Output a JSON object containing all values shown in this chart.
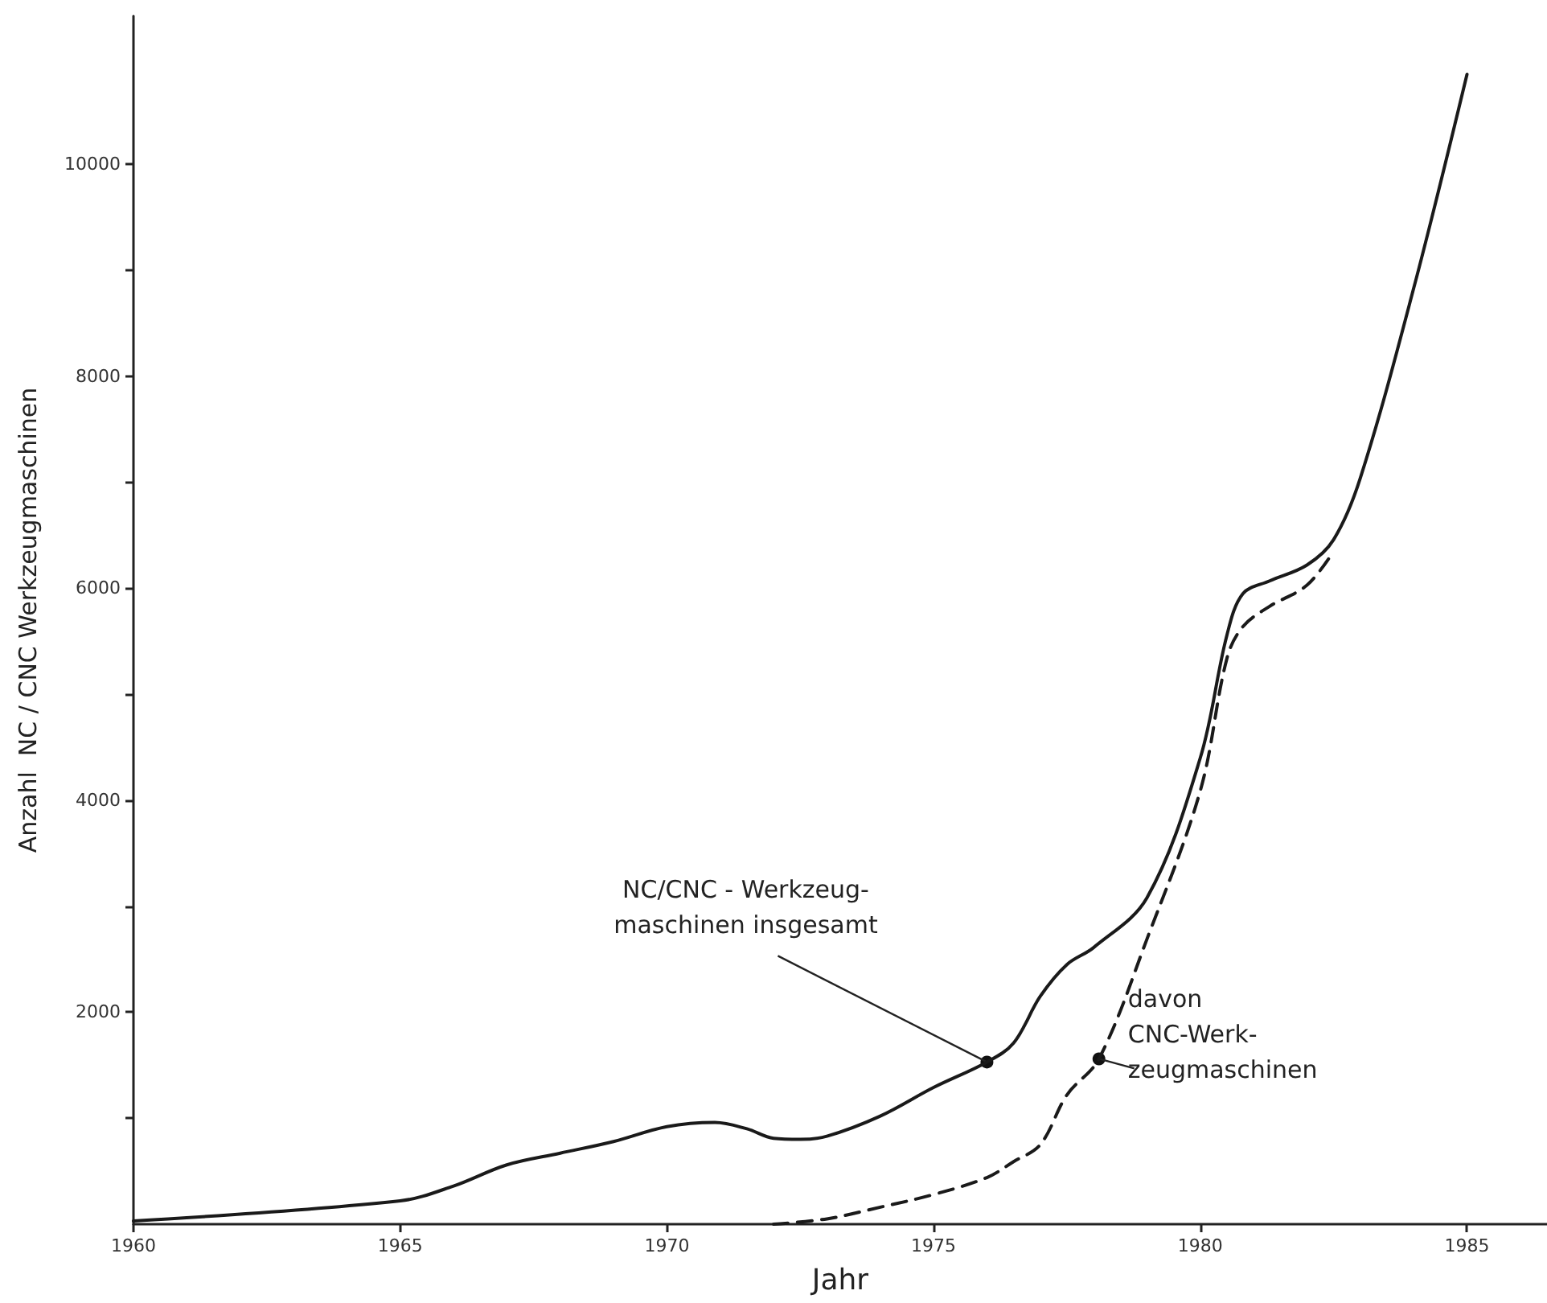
{
  "chart_data": {
    "type": "line",
    "xlabel": "Jahr",
    "ylabel": "Anzahl  NC / CNC Werkzeugmaschinen",
    "xlim": [
      1960,
      1986.5
    ],
    "ylim": [
      0,
      11400
    ],
    "xticks": [
      1960,
      1965,
      1970,
      1975,
      1980,
      1985
    ],
    "yticks": [
      {
        "value": 1000,
        "label": null
      },
      2000,
      {
        "value": 3000,
        "label": null
      },
      4000,
      {
        "value": 5000,
        "label": null
      },
      6000,
      {
        "value": 7000,
        "label": null
      },
      8000,
      {
        "value": 9000,
        "label": null
      },
      10000
    ],
    "marker": "none",
    "series": [
      {
        "color": "#1a1a1a",
        "line_style": "solid",
        "x": [
          1960,
          1965,
          1966,
          1967,
          1968,
          1969,
          1970,
          1970.9,
          1971.5,
          1972,
          1972.5,
          1973,
          1974,
          1975,
          1976,
          1976.5,
          1977,
          1977.5,
          1978,
          1979,
          1980,
          1980.5,
          1980.8,
          1981.3,
          1982,
          1982.5,
          1983,
          1984,
          1985
        ],
        "values": [
          30,
          220,
          360,
          560,
          670,
          780,
          920,
          960,
          900,
          810,
          800,
          830,
          1020,
          1290,
          1530,
          1710,
          2150,
          2450,
          2610,
          3080,
          4400,
          5560,
          5950,
          6070,
          6220,
          6460,
          7040,
          8830,
          10850
        ]
      },
      {
        "color": "#1a1a1a",
        "line_style": "dashed",
        "x": [
          1972,
          1973,
          1974,
          1975,
          1976,
          1976.5,
          1977,
          1977.5,
          1978.1,
          1979,
          1980,
          1980.5,
          1980.8,
          1981.3,
          1982,
          1982.5
        ],
        "values": [
          0,
          50,
          160,
          280,
          440,
          590,
          750,
          1220,
          1560,
          2690,
          4090,
          5340,
          5640,
          5830,
          6030,
          6350
        ]
      }
    ],
    "annotations": [
      {
        "text": "NC/CNC - Werkzeug-\nmaschinen insgesamt",
        "x": 1976,
        "y": 1530
      },
      {
        "text": "davon\nCNC-Werk-\nzeugmaschinen",
        "x": 1978.1,
        "y": 1560
      }
    ]
  }
}
